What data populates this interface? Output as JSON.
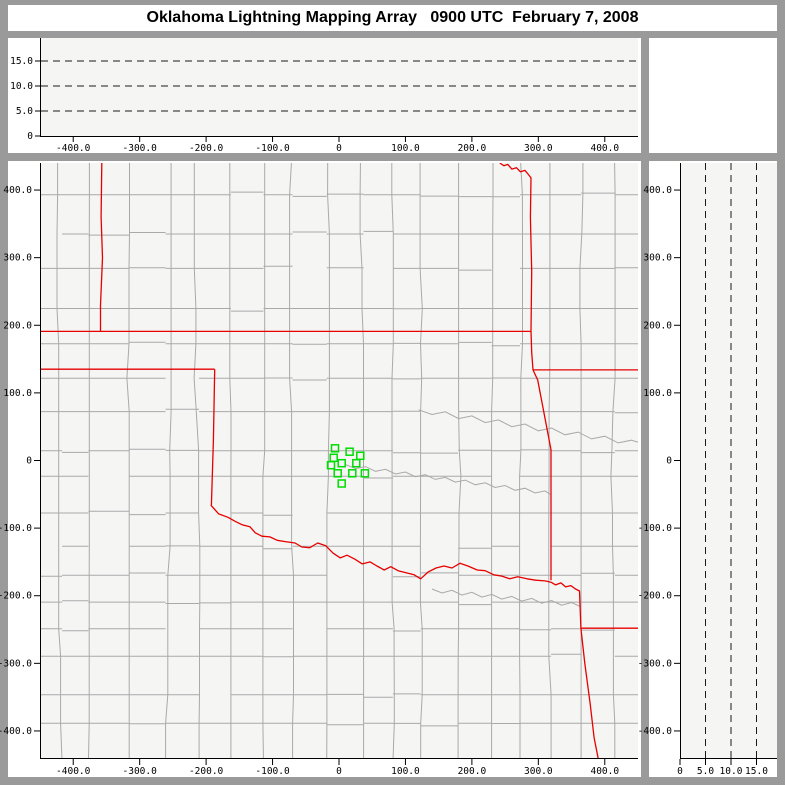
{
  "title": "Oklahoma Lightning Mapping Array   0900 UTC  February 7, 2008",
  "colors": {
    "frame": "#9a9a9a",
    "panel_bg": "#ffffff",
    "plot_bg": "#f5f5f4",
    "axis": "#000000",
    "grid_dash": "#1a1a1a",
    "county_line": "#a9a9a9",
    "river_line": "#a9a9a9",
    "state_line": "#e60000",
    "station": "#00dd00",
    "tick_text": "#000000"
  },
  "axes": {
    "distance_ticks": [
      {
        "v": -400,
        "label": "-400.0"
      },
      {
        "v": -300,
        "label": "-300.0"
      },
      {
        "v": -200,
        "label": "-200.0"
      },
      {
        "v": -100,
        "label": "-100.0"
      },
      {
        "v": 0,
        "label": "0"
      },
      {
        "v": 100,
        "label": "100.0"
      },
      {
        "v": 200,
        "label": "200.0"
      },
      {
        "v": 300,
        "label": "300.0"
      },
      {
        "v": 400,
        "label": "400.0"
      }
    ],
    "altitude_ticks": [
      {
        "v": 0,
        "label": "0"
      },
      {
        "v": 5,
        "label": "5.0"
      },
      {
        "v": 10,
        "label": "10.0"
      },
      {
        "v": 15,
        "label": "15.0"
      }
    ],
    "ew_range_km": [
      -450,
      450
    ],
    "ns_range_km": [
      -440,
      440
    ],
    "alt_range_km": [
      0,
      19.6
    ],
    "altitude_dash_levels_km": [
      5,
      10,
      15
    ]
  },
  "map": {
    "stations_km": [
      [
        -6,
        18
      ],
      [
        -8,
        4
      ],
      [
        16,
        13
      ],
      [
        32,
        7
      ],
      [
        -12,
        -7
      ],
      [
        4,
        -4
      ],
      [
        26,
        -4
      ],
      [
        -2,
        -19
      ],
      [
        20,
        -19
      ],
      [
        39,
        -19
      ],
      [
        4,
        -34
      ]
    ],
    "state_borders_km": [
      [
        [
          -357,
          440
        ],
        [
          -358,
          360
        ],
        [
          -356,
          300
        ],
        [
          -359,
          230
        ],
        [
          -359,
          191
        ]
      ],
      [
        [
          -450,
          191
        ],
        [
          289,
          191
        ]
      ],
      [
        [
          242,
          440
        ],
        [
          248,
          436
        ],
        [
          254,
          438
        ],
        [
          260,
          431
        ],
        [
          267,
          433
        ],
        [
          273,
          427
        ],
        [
          280,
          429
        ],
        [
          285,
          423
        ],
        [
          289,
          418
        ],
        [
          288,
          360
        ],
        [
          290,
          280
        ],
        [
          289,
          191
        ],
        [
          290,
          160
        ],
        [
          292,
          134
        ]
      ],
      [
        [
          292,
          134
        ],
        [
          450,
          134
        ]
      ],
      [
        [
          -450,
          135
        ],
        [
          -187,
          135
        ]
      ],
      [
        [
          -187,
          135
        ],
        [
          -189,
          30
        ],
        [
          -192,
          -66
        ]
      ],
      [
        [
          -193,
          -66
        ],
        [
          -181,
          -79
        ],
        [
          -167,
          -84
        ],
        [
          -156,
          -90
        ],
        [
          -146,
          -95
        ],
        [
          -134,
          -98
        ],
        [
          -126,
          -107
        ],
        [
          -116,
          -112
        ],
        [
          -104,
          -113
        ],
        [
          -93,
          -118
        ],
        [
          -81,
          -120
        ],
        [
          -66,
          -122
        ],
        [
          -56,
          -128
        ],
        [
          -44,
          -129
        ],
        [
          -32,
          -122
        ],
        [
          -20,
          -126
        ],
        [
          -9,
          -137
        ],
        [
          2,
          -144
        ],
        [
          12,
          -140
        ],
        [
          24,
          -146
        ],
        [
          35,
          -153
        ],
        [
          47,
          -150
        ],
        [
          57,
          -156
        ],
        [
          68,
          -162
        ],
        [
          78,
          -157
        ],
        [
          89,
          -163
        ],
        [
          101,
          -166
        ],
        [
          113,
          -169
        ],
        [
          123,
          -175
        ],
        [
          134,
          -165
        ],
        [
          146,
          -159
        ],
        [
          158,
          -156
        ],
        [
          170,
          -159
        ],
        [
          182,
          -152
        ],
        [
          194,
          -156
        ],
        [
          208,
          -162
        ],
        [
          220,
          -163
        ],
        [
          233,
          -169
        ],
        [
          245,
          -171
        ],
        [
          257,
          -175
        ],
        [
          269,
          -172
        ],
        [
          283,
          -175
        ],
        [
          296,
          -177
        ],
        [
          310,
          -178
        ],
        [
          319,
          -180
        ]
      ],
      [
        [
          292,
          134
        ],
        [
          299,
          119
        ],
        [
          319,
          16
        ],
        [
          319,
          -177
        ]
      ],
      [
        [
          319,
          -180
        ],
        [
          326,
          -184
        ],
        [
          334,
          -181
        ],
        [
          341,
          -187
        ],
        [
          349,
          -185
        ],
        [
          356,
          -190
        ],
        [
          362,
          -193
        ],
        [
          364,
          -248
        ]
      ],
      [
        [
          364,
          -248
        ],
        [
          450,
          -248
        ]
      ],
      [
        [
          364,
          -248
        ],
        [
          370,
          -300
        ],
        [
          378,
          -360
        ],
        [
          384,
          -410
        ],
        [
          390,
          -440
        ]
      ]
    ],
    "rivers_km": [
      [
        [
          10,
          -6
        ],
        [
          25,
          -12
        ],
        [
          40,
          -9
        ],
        [
          55,
          -16
        ],
        [
          70,
          -13
        ],
        [
          85,
          -20
        ],
        [
          100,
          -17
        ],
        [
          115,
          -24
        ],
        [
          130,
          -21
        ],
        [
          145,
          -28
        ],
        [
          160,
          -25
        ],
        [
          175,
          -32
        ],
        [
          190,
          -29
        ],
        [
          205,
          -36
        ],
        [
          220,
          -33
        ],
        [
          235,
          -40
        ],
        [
          250,
          -37
        ],
        [
          265,
          -44
        ],
        [
          280,
          -41
        ],
        [
          295,
          -48
        ],
        [
          310,
          -45
        ],
        [
          318,
          -50
        ]
      ],
      [
        [
          140,
          -190
        ],
        [
          155,
          -196
        ],
        [
          170,
          -192
        ],
        [
          185,
          -199
        ],
        [
          200,
          -195
        ],
        [
          215,
          -202
        ],
        [
          230,
          -198
        ],
        [
          245,
          -205
        ],
        [
          260,
          -201
        ],
        [
          275,
          -208
        ],
        [
          290,
          -204
        ],
        [
          305,
          -211
        ],
        [
          320,
          -207
        ],
        [
          335,
          -214
        ],
        [
          350,
          -210
        ],
        [
          363,
          -216
        ]
      ],
      [
        [
          120,
          75
        ],
        [
          140,
          68
        ],
        [
          160,
          72
        ],
        [
          180,
          62
        ],
        [
          200,
          66
        ],
        [
          220,
          56
        ],
        [
          240,
          60
        ],
        [
          260,
          50
        ],
        [
          280,
          54
        ],
        [
          300,
          44
        ],
        [
          320,
          48
        ],
        [
          340,
          38
        ],
        [
          360,
          42
        ],
        [
          380,
          32
        ],
        [
          400,
          36
        ],
        [
          420,
          26
        ],
        [
          440,
          30
        ],
        [
          450,
          27
        ]
      ]
    ]
  }
}
